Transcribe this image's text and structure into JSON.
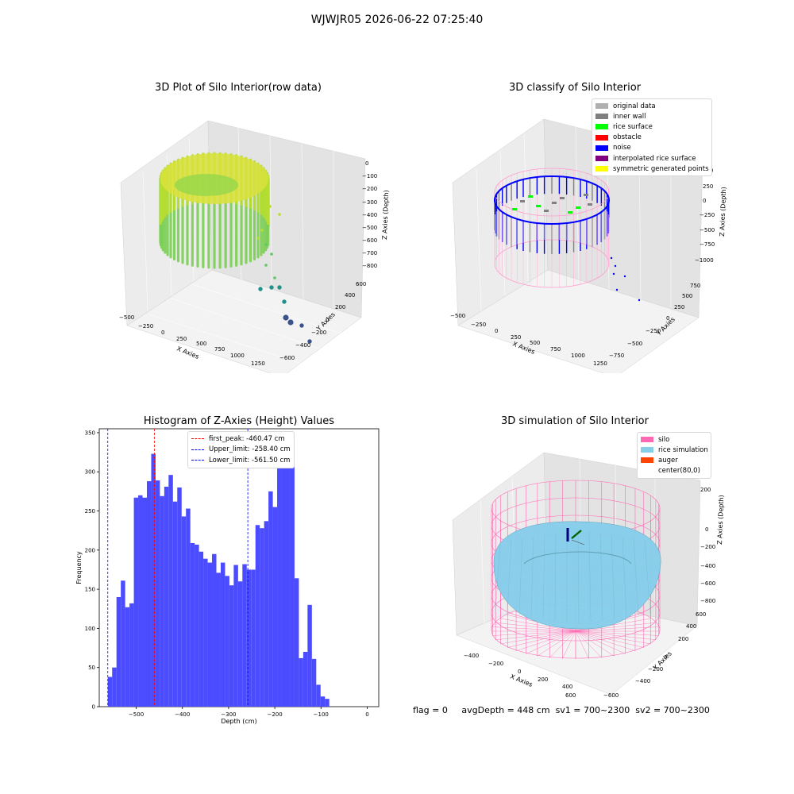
{
  "figure": {
    "suptitle": "WJWJR05 2026-06-22 07:25:40"
  },
  "footer": {
    "flag": "flag = 0",
    "avg_depth": "avgDepth = 448 cm",
    "sv1": "sv1 = 700~2300",
    "sv2": "sv2 = 700~2300"
  },
  "colors": {
    "histogram_bar": "#4b4bff",
    "first_peak": "#ff0000",
    "limit_lines": "#0000ff",
    "silo": "#ff69b4",
    "rice_simulation": "#87ceeb",
    "auger": "#ff4500"
  },
  "chart_data": [
    {
      "type": "scatter",
      "title": "3D Plot of Silo Interior(row data)",
      "xlabel": "X Axies",
      "ylabel": "Y Axies",
      "zlabel": "Z Axies (Depth)",
      "x_ticks": [
        "−500",
        "−250",
        "0",
        "250",
        "500",
        "750",
        "1000",
        "1250"
      ],
      "y_ticks": [
        "−600",
        "−400",
        "−200",
        "0",
        "200",
        "400",
        "600"
      ],
      "z_ticks": [
        "0",
        "−100",
        "−200",
        "−300",
        "−400",
        "−500",
        "−600",
        "−700",
        "−800"
      ],
      "xlim": [
        -500,
        1300
      ],
      "ylim": [
        -600,
        600
      ],
      "zlim": [
        -850,
        0
      ],
      "colormap": "viridis"
    },
    {
      "type": "scatter",
      "title": "3D classify of Silo Interior",
      "xlabel": "X Axies",
      "ylabel": "Y Axies",
      "zlabel": "Z Axies (Depth)",
      "x_ticks": [
        "−500",
        "−250",
        "0",
        "250",
        "500",
        "750",
        "1000",
        "1250"
      ],
      "y_ticks": [
        "−750",
        "−500",
        "−250",
        "0",
        "250",
        "500",
        "750"
      ],
      "z_ticks": [
        "500",
        "250",
        "0",
        "−250",
        "−500",
        "−750",
        "−1000"
      ],
      "legend_position": "upper right",
      "legend": [
        {
          "label": "original data",
          "color": "#b0b0b0"
        },
        {
          "label": "inner wall",
          "color": "#808080"
        },
        {
          "label": "rice surface",
          "color": "#00ff00"
        },
        {
          "label": "obstacle",
          "color": "#ff0000"
        },
        {
          "label": "noise",
          "color": "#0000ff"
        },
        {
          "label": "interpolated rice surface",
          "color": "#800080"
        },
        {
          "label": "symmetric generated points",
          "color": "#ffff00"
        }
      ]
    },
    {
      "type": "bar",
      "title": "Histogram of Z-Axies (Height) Values",
      "xlabel": "Depth (cm)",
      "ylabel": "Frequency",
      "xlim": [
        -580,
        25
      ],
      "ylim": [
        0,
        355
      ],
      "x_ticks": [
        -500,
        -400,
        -300,
        -200,
        -100,
        0
      ],
      "x_tick_labels": [
        "−500",
        "−400",
        "−300",
        "−200",
        "−100",
        "0"
      ],
      "y_ticks": [
        0,
        50,
        100,
        150,
        200,
        250,
        300,
        350
      ],
      "bin_start": -561.5,
      "bin_width": 9.4,
      "values": [
        38,
        50,
        140,
        161,
        127,
        132,
        267,
        270,
        267,
        288,
        323,
        289,
        269,
        281,
        296,
        262,
        280,
        243,
        253,
        209,
        207,
        198,
        189,
        184,
        195,
        171,
        184,
        167,
        155,
        181,
        160,
        182,
        175,
        175,
        232,
        228,
        237,
        275,
        255,
        306,
        322,
        339,
        335,
        164,
        62,
        70,
        130,
        61,
        28,
        13,
        10
      ],
      "legend_position": "upper center",
      "vlines": [
        {
          "label": "first_peak: -460.47 cm",
          "x": -460.47,
          "color": "#ff0000"
        },
        {
          "label": "Upper_limit: -258.40 cm",
          "x": -258.4,
          "color": "#0000ff"
        },
        {
          "label": "Lower_limit: -561.50 cm",
          "x": -561.5,
          "color": "#0000ff"
        }
      ]
    },
    {
      "type": "surface",
      "title": "3D simulation of Silo Interior",
      "xlabel": "X Axies",
      "ylabel": "Y Axies",
      "zlabel": "Z Axies (Depth)",
      "x_ticks": [
        "−400",
        "−200",
        "0",
        "200",
        "400",
        "600"
      ],
      "y_ticks": [
        "−600",
        "−400",
        "−200",
        "0",
        "200",
        "400",
        "600"
      ],
      "z_ticks": [
        "200",
        "0",
        "−200",
        "−400",
        "−600",
        "−800"
      ],
      "legend_position": "upper right",
      "legend": [
        {
          "label": "silo",
          "color": "#ff69b4"
        },
        {
          "label": "rice simulation",
          "color": "#87ceeb"
        },
        {
          "label": "auger",
          "color": "#ff4500"
        },
        {
          "label": "center(80,0)",
          "color": "#ffffff"
        }
      ]
    }
  ]
}
